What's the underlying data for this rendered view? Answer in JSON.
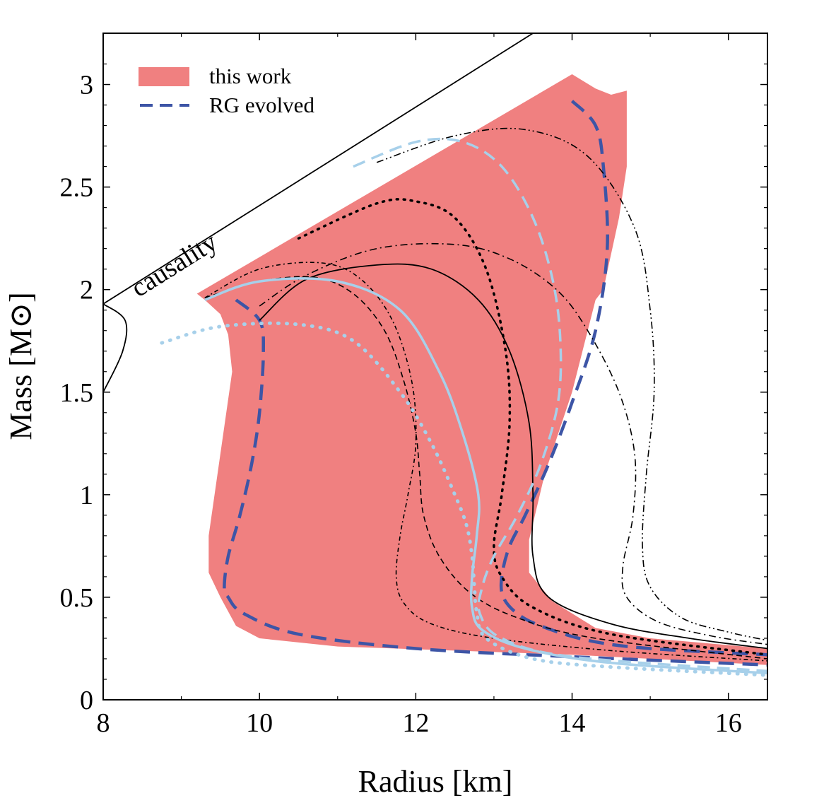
{
  "chart_data": {
    "type": "line",
    "xlabel": "Radius [km]",
    "ylabel": "Mass [M⊙]",
    "xlim": [
      8,
      16.5
    ],
    "ylim": [
      0,
      3.25
    ],
    "xticks": [
      8,
      10,
      12,
      14,
      16
    ],
    "xtick_labels": [
      "8",
      "10",
      "12",
      "14",
      "16"
    ],
    "yticks": [
      0,
      0.5,
      1,
      1.5,
      2,
      2.5,
      3
    ],
    "ytick_labels": [
      "0",
      "0.5",
      "1",
      "1.5",
      "2",
      "2.5",
      "3"
    ],
    "grid": false,
    "legend_position": "top-left",
    "colors": {
      "band": "#f08080",
      "rg": "#3d55a6",
      "light_blue": "#a7d0ea",
      "black": "#000000"
    },
    "legend": [
      {
        "label": "this work",
        "style": "band"
      },
      {
        "label": "RG evolved",
        "style": "dashed-blue"
      }
    ],
    "annotations": [
      {
        "text": "causality"
      }
    ],
    "band": {
      "name": "this work",
      "polygon": [
        [
          9.2,
          1.98
        ],
        [
          14.0,
          3.05
        ],
        [
          14.3,
          2.98
        ],
        [
          14.5,
          2.95
        ],
        [
          14.7,
          2.97
        ],
        [
          14.7,
          2.6
        ],
        [
          14.6,
          2.35
        ],
        [
          14.4,
          2.0
        ],
        [
          14.3,
          1.95
        ],
        [
          14.0,
          1.5
        ],
        [
          13.65,
          1.1
        ],
        [
          13.45,
          0.78
        ],
        [
          13.45,
          0.62
        ],
        [
          13.75,
          0.48
        ],
        [
          14.3,
          0.35
        ],
        [
          15.0,
          0.3
        ],
        [
          15.6,
          0.28
        ],
        [
          16.5,
          0.25
        ],
        [
          16.5,
          0.17
        ],
        [
          15.0,
          0.2
        ],
        [
          14.0,
          0.22
        ],
        [
          12.5,
          0.24
        ],
        [
          11.0,
          0.26
        ],
        [
          10.0,
          0.3
        ],
        [
          9.7,
          0.36
        ],
        [
          9.5,
          0.5
        ],
        [
          9.35,
          0.62
        ],
        [
          9.35,
          0.8
        ],
        [
          9.5,
          1.2
        ],
        [
          9.65,
          1.6
        ],
        [
          9.6,
          1.78
        ],
        [
          9.5,
          1.88
        ],
        [
          9.3,
          1.95
        ]
      ]
    },
    "causality": {
      "x": [
        8.0,
        13.5
      ],
      "y": [
        1.93,
        3.25
      ]
    },
    "series": [
      {
        "name": "RG evolved",
        "style": "dashed-blue",
        "x": [
          9.7,
          10.0,
          10.05,
          10.0,
          9.9,
          9.75,
          9.6,
          9.55,
          9.6,
          9.8,
          10.5,
          12.0,
          14.0,
          16.5
        ],
        "y": [
          1.95,
          1.85,
          1.7,
          1.4,
          1.15,
          0.9,
          0.7,
          0.55,
          0.5,
          0.42,
          0.32,
          0.25,
          0.21,
          0.17
        ]
      },
      {
        "style": "dashed-blue",
        "x": [
          14.0,
          14.3,
          14.4,
          14.45,
          14.3,
          14.0,
          13.7,
          13.4,
          13.2,
          13.1,
          13.12,
          13.3,
          13.6,
          14.2,
          15.0,
          16.5
        ],
        "y": [
          2.92,
          2.8,
          2.6,
          2.2,
          1.8,
          1.45,
          1.15,
          0.9,
          0.75,
          0.6,
          0.5,
          0.42,
          0.36,
          0.29,
          0.25,
          0.22
        ]
      },
      {
        "style": "solid-black",
        "x": [
          8.0,
          8.28,
          8.25,
          8.0
        ],
        "y": [
          1.93,
          1.85,
          1.7,
          1.5
        ]
      },
      {
        "style": "solid-black",
        "x": [
          10.0,
          10.6,
          11.5,
          12.2,
          12.8,
          13.2,
          13.45,
          13.5,
          13.5,
          13.7,
          14.5,
          15.5,
          16.5
        ],
        "y": [
          1.85,
          2.05,
          2.12,
          2.1,
          1.95,
          1.7,
          1.35,
          1.0,
          0.7,
          0.5,
          0.37,
          0.3,
          0.25
        ]
      },
      {
        "style": "dotted-black",
        "x": [
          10.5,
          11.5,
          12.0,
          12.5,
          12.9,
          13.15,
          13.2,
          13.1,
          13.0,
          13.1,
          13.5,
          14.5,
          16.5
        ],
        "y": [
          2.25,
          2.42,
          2.43,
          2.35,
          2.1,
          1.7,
          1.35,
          1.0,
          0.75,
          0.6,
          0.45,
          0.32,
          0.22
        ]
      },
      {
        "style": "dashdot-black",
        "x": [
          10.0,
          10.6,
          11.5,
          12.5,
          13.2,
          13.8,
          14.2,
          14.6,
          14.8,
          14.78,
          14.65,
          14.7,
          15.1,
          15.8,
          16.5
        ],
        "y": [
          1.92,
          2.07,
          2.2,
          2.22,
          2.15,
          2.0,
          1.8,
          1.5,
          1.2,
          0.9,
          0.65,
          0.5,
          0.38,
          0.31,
          0.27
        ]
      },
      {
        "style": "dashdotdot-black",
        "x": [
          11.5,
          12.5,
          13.4,
          14.2,
          14.8,
          15.0,
          15.05,
          14.95,
          14.9,
          15.0,
          15.4,
          16.0,
          16.5
        ],
        "y": [
          2.62,
          2.75,
          2.78,
          2.65,
          2.3,
          1.9,
          1.5,
          1.1,
          0.75,
          0.55,
          0.4,
          0.33,
          0.29
        ]
      },
      {
        "style": "dashed-black",
        "x": [
          9.3,
          10.0,
          10.7,
          11.2,
          11.6,
          11.85,
          12.0,
          12.05,
          12.1,
          12.3,
          12.7,
          13.3,
          14.3,
          16.5
        ],
        "y": [
          1.96,
          2.04,
          2.06,
          1.98,
          1.8,
          1.55,
          1.3,
          1.1,
          0.9,
          0.7,
          0.52,
          0.4,
          0.3,
          0.2
        ]
      },
      {
        "style": "dashdot-black-short",
        "x": [
          9.3,
          10.0,
          10.8,
          11.3,
          11.7,
          11.95,
          12.0,
          11.9,
          11.8,
          11.75,
          11.85,
          12.2,
          13.0,
          14.5,
          16.5
        ],
        "y": [
          1.96,
          2.1,
          2.13,
          2.05,
          1.85,
          1.55,
          1.25,
          1.0,
          0.8,
          0.6,
          0.47,
          0.37,
          0.3,
          0.24,
          0.19
        ]
      },
      {
        "style": "solid-lightblue",
        "x": [
          9.3,
          10.0,
          11.0,
          11.8,
          12.3,
          12.6,
          12.8,
          12.78,
          12.72,
          12.72,
          12.85,
          13.4,
          14.5,
          16.5
        ],
        "y": [
          1.95,
          2.04,
          2.04,
          1.9,
          1.6,
          1.3,
          1.0,
          0.8,
          0.6,
          0.45,
          0.34,
          0.25,
          0.18,
          0.13
        ]
      },
      {
        "style": "dashed-lightblue",
        "x": [
          11.2,
          12.0,
          12.6,
          13.1,
          13.5,
          13.75,
          13.85,
          13.82,
          13.6,
          13.3,
          13.0,
          12.85,
          12.82,
          13.1,
          14.0,
          16.5
        ],
        "y": [
          2.6,
          2.72,
          2.72,
          2.6,
          2.35,
          2.05,
          1.75,
          1.45,
          1.15,
          0.9,
          0.7,
          0.55,
          0.42,
          0.3,
          0.21,
          0.14
        ]
      },
      {
        "style": "dotted-lightblue",
        "x": [
          8.75,
          9.5,
          10.5,
          11.2,
          11.8,
          12.2,
          12.5,
          12.65,
          12.72,
          12.75,
          12.78,
          12.9,
          13.5,
          14.5,
          16.5
        ],
        "y": [
          1.74,
          1.82,
          1.83,
          1.75,
          1.5,
          1.25,
          1.0,
          0.85,
          0.7,
          0.55,
          0.43,
          0.3,
          0.2,
          0.16,
          0.12
        ]
      }
    ]
  }
}
